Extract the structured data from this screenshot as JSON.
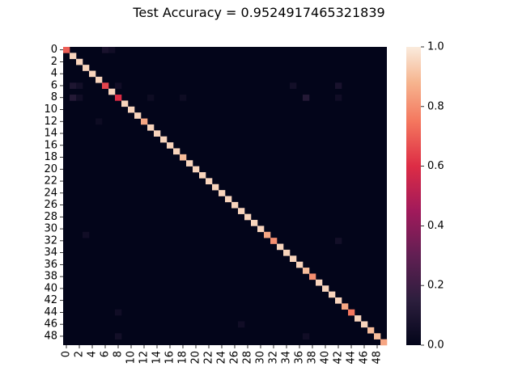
{
  "title": "Test Accuracy = 0.9524917465321839",
  "chart_data": {
    "type": "heatmap",
    "title": "Test Accuracy = 0.9524917465321839",
    "n": 50,
    "tick_every": 2,
    "row_labels": [
      "0",
      "2",
      "4",
      "6",
      "8",
      "10",
      "12",
      "14",
      "16",
      "18",
      "20",
      "22",
      "24",
      "26",
      "28",
      "30",
      "32",
      "34",
      "36",
      "38",
      "40",
      "42",
      "44",
      "46",
      "48"
    ],
    "col_labels": [
      "0",
      "2",
      "4",
      "6",
      "8",
      "10",
      "12",
      "14",
      "16",
      "18",
      "20",
      "22",
      "24",
      "26",
      "28",
      "30",
      "32",
      "34",
      "36",
      "38",
      "40",
      "42",
      "44",
      "46",
      "48"
    ],
    "colorbar": {
      "min": 0.0,
      "max": 1.0,
      "ticks": [
        "0.0",
        "0.2",
        "0.4",
        "0.6",
        "0.8",
        "1.0"
      ]
    },
    "diagonal": [
      0.7,
      0.95,
      0.95,
      0.95,
      0.95,
      0.95,
      0.65,
      0.95,
      0.6,
      0.95,
      0.95,
      0.95,
      0.85,
      0.95,
      0.95,
      0.95,
      0.95,
      0.95,
      0.9,
      0.95,
      0.95,
      0.95,
      0.95,
      0.95,
      0.95,
      0.95,
      0.95,
      0.95,
      0.95,
      0.95,
      0.95,
      0.85,
      0.8,
      0.95,
      0.95,
      0.95,
      0.95,
      0.9,
      0.8,
      0.95,
      0.95,
      0.95,
      0.95,
      0.85,
      0.75,
      0.95,
      0.95,
      0.9,
      0.9,
      0.85
    ],
    "off_diagonal": [
      {
        "r": 0,
        "c": 6,
        "v": 0.08
      },
      {
        "r": 0,
        "c": 7,
        "v": 0.05
      },
      {
        "r": 6,
        "c": 1,
        "v": 0.1
      },
      {
        "r": 6,
        "c": 2,
        "v": 0.06
      },
      {
        "r": 6,
        "c": 8,
        "v": 0.05
      },
      {
        "r": 6,
        "c": 35,
        "v": 0.06
      },
      {
        "r": 6,
        "c": 42,
        "v": 0.08
      },
      {
        "r": 8,
        "c": 1,
        "v": 0.12
      },
      {
        "r": 8,
        "c": 2,
        "v": 0.05
      },
      {
        "r": 8,
        "c": 13,
        "v": 0.04
      },
      {
        "r": 8,
        "c": 18,
        "v": 0.04
      },
      {
        "r": 8,
        "c": 37,
        "v": 0.12
      },
      {
        "r": 8,
        "c": 42,
        "v": 0.05
      },
      {
        "r": 12,
        "c": 5,
        "v": 0.04
      },
      {
        "r": 31,
        "c": 3,
        "v": 0.05
      },
      {
        "r": 32,
        "c": 42,
        "v": 0.06
      },
      {
        "r": 44,
        "c": 8,
        "v": 0.05
      },
      {
        "r": 46,
        "c": 27,
        "v": 0.05
      },
      {
        "r": 48,
        "c": 8,
        "v": 0.06
      },
      {
        "r": 48,
        "c": 37,
        "v": 0.05
      }
    ]
  }
}
